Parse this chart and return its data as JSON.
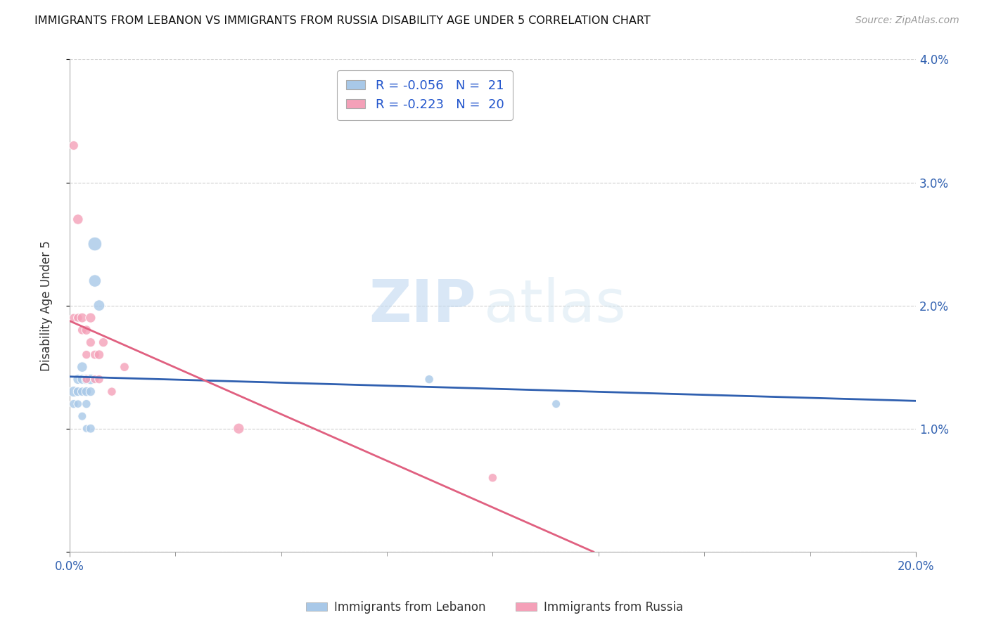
{
  "title": "IMMIGRANTS FROM LEBANON VS IMMIGRANTS FROM RUSSIA DISABILITY AGE UNDER 5 CORRELATION CHART",
  "source": "Source: ZipAtlas.com",
  "ylabel": "Disability Age Under 5",
  "xlim": [
    0.0,
    0.2
  ],
  "ylim": [
    0.0,
    0.04
  ],
  "xticks_major": [
    0.0,
    0.05,
    0.1,
    0.15,
    0.2
  ],
  "xticks_minor": [
    0.0,
    0.025,
    0.05,
    0.075,
    0.1,
    0.125,
    0.15,
    0.175,
    0.2
  ],
  "yticks": [
    0.0,
    0.01,
    0.02,
    0.03,
    0.04
  ],
  "lebanon_color": "#a8c8e8",
  "russia_color": "#f4a0b8",
  "lebanon_line_color": "#3060b0",
  "russia_line_color": "#e06080",
  "watermark_zip": "ZIP",
  "watermark_atlas": "atlas",
  "watermark_color": "#c8dff0",
  "background_color": "#ffffff",
  "grid_color": "#d0d0d0",
  "title_color": "#111111",
  "axis_label_color": "#333333",
  "tick_color": "#3060b0",
  "legend_text_color": "#2255cc",
  "legend_R_lebanon": "R = -0.056",
  "legend_N_lebanon": "N =  21",
  "legend_R_russia": "R = -0.223",
  "legend_N_russia": "N =  20",
  "lebanon_x": [
    0.001,
    0.001,
    0.002,
    0.002,
    0.002,
    0.003,
    0.003,
    0.003,
    0.003,
    0.004,
    0.004,
    0.004,
    0.004,
    0.005,
    0.005,
    0.005,
    0.006,
    0.006,
    0.007,
    0.085,
    0.115
  ],
  "lebanon_y": [
    0.013,
    0.012,
    0.014,
    0.013,
    0.012,
    0.015,
    0.014,
    0.013,
    0.011,
    0.014,
    0.013,
    0.012,
    0.01,
    0.014,
    0.013,
    0.01,
    0.025,
    0.022,
    0.02,
    0.014,
    0.012
  ],
  "russia_x": [
    0.001,
    0.001,
    0.002,
    0.002,
    0.003,
    0.003,
    0.004,
    0.004,
    0.004,
    0.005,
    0.005,
    0.006,
    0.006,
    0.007,
    0.007,
    0.008,
    0.01,
    0.013,
    0.04,
    0.1
  ],
  "russia_y": [
    0.033,
    0.019,
    0.027,
    0.019,
    0.019,
    0.018,
    0.018,
    0.016,
    0.014,
    0.019,
    0.017,
    0.016,
    0.014,
    0.016,
    0.014,
    0.017,
    0.013,
    0.015,
    0.01,
    0.006
  ],
  "lebanon_sizes": [
    120,
    80,
    100,
    90,
    70,
    110,
    95,
    85,
    75,
    105,
    95,
    80,
    65,
    110,
    90,
    85,
    200,
    160,
    130,
    80,
    75
  ],
  "russia_sizes": [
    90,
    75,
    110,
    80,
    100,
    85,
    95,
    80,
    70,
    105,
    90,
    85,
    75,
    95,
    80,
    90,
    80,
    85,
    120,
    80
  ]
}
